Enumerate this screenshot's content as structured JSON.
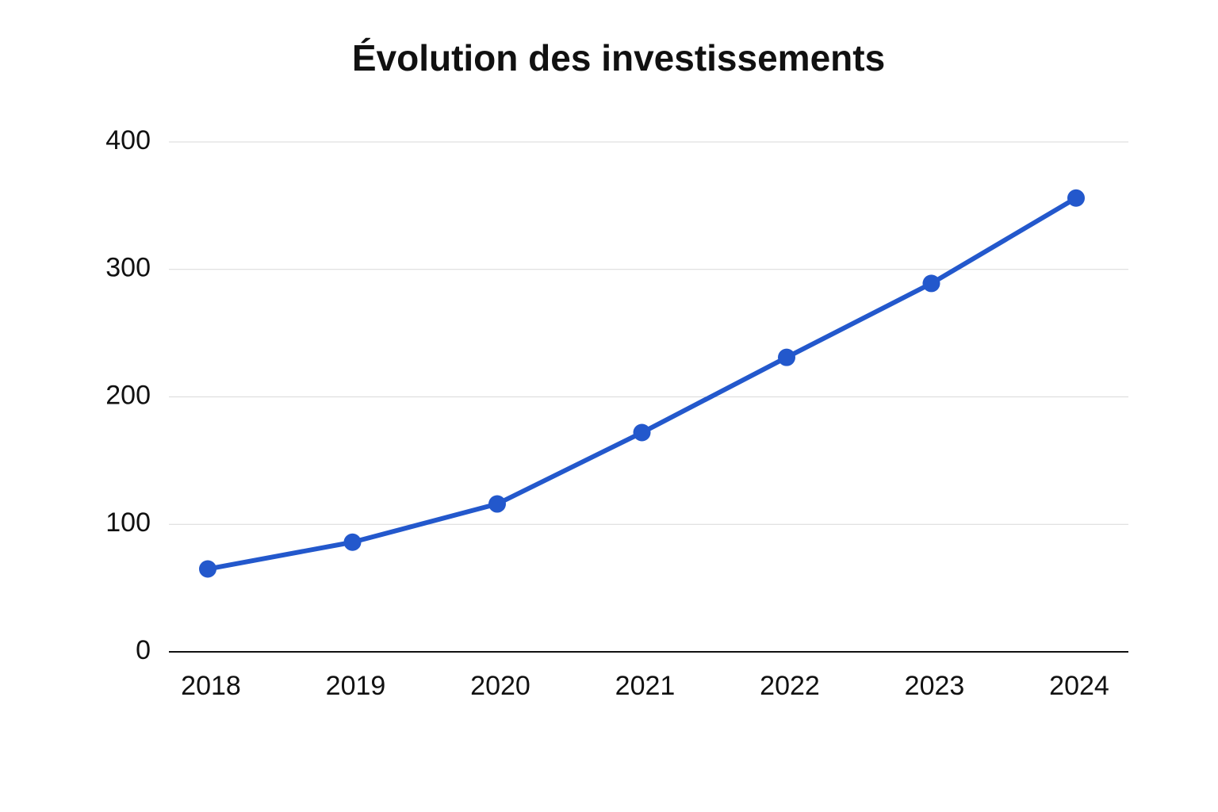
{
  "chart_data": {
    "type": "line",
    "title": "Évolution des investissements",
    "categories": [
      "2018",
      "2019",
      "2020",
      "2021",
      "2022",
      "2023",
      "2024"
    ],
    "series": [
      {
        "color": "#2358cc",
        "values": [
          65,
          86,
          116,
          172,
          231,
          289,
          356
        ]
      }
    ],
    "ylim": [
      0,
      400
    ],
    "yticks": [
      0,
      100,
      200,
      300,
      400
    ],
    "grid": true
  }
}
